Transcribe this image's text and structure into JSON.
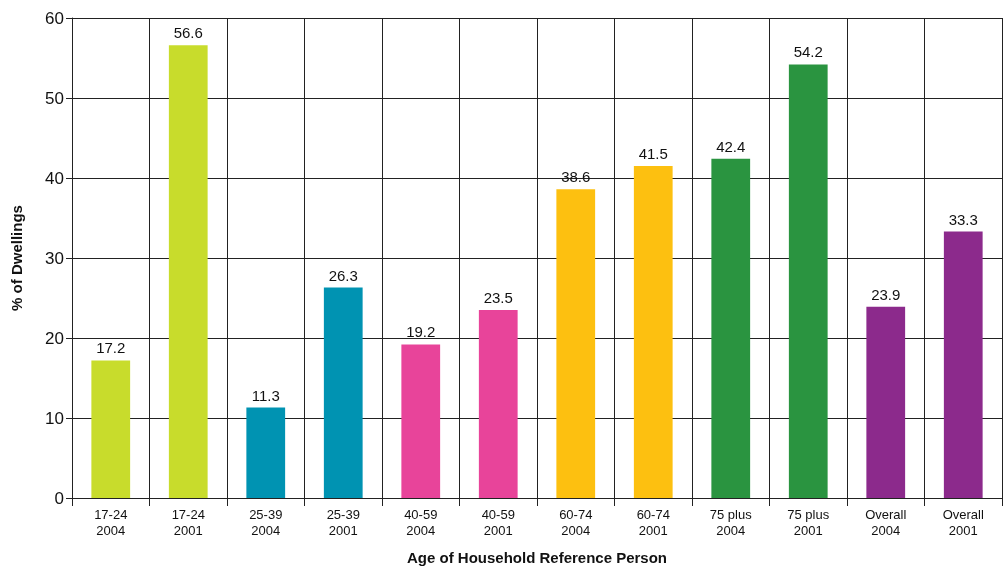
{
  "chart_data": {
    "type": "bar",
    "xlabel": "Age of Household Reference Person",
    "ylabel": "% of Dwellings",
    "categories": [
      "17-24\n2004",
      "17-24\n2001",
      "25-39\n2004",
      "25-39\n2001",
      "40-59\n2004",
      "40-59\n2001",
      "60-74\n2004",
      "60-74\n2001",
      "75 plus\n2004",
      "75 plus\n2001",
      "Overall\n2004",
      "Overall\n2001"
    ],
    "values": [
      17.2,
      56.6,
      11.3,
      26.3,
      19.2,
      23.5,
      38.6,
      41.5,
      42.4,
      54.2,
      23.9,
      33.3
    ],
    "colors": [
      "#c8dc2c",
      "#c8dc2c",
      "#0093b2",
      "#0093b2",
      "#e8449a",
      "#e8449a",
      "#fdc010",
      "#fdc010",
      "#2a9440",
      "#2a9440",
      "#8c2a8c",
      "#8c2a8c"
    ],
    "ylim": [
      0,
      60
    ],
    "yticks": [
      0,
      10,
      20,
      30,
      40,
      50,
      60
    ],
    "grid": true,
    "data_labels": true
  }
}
